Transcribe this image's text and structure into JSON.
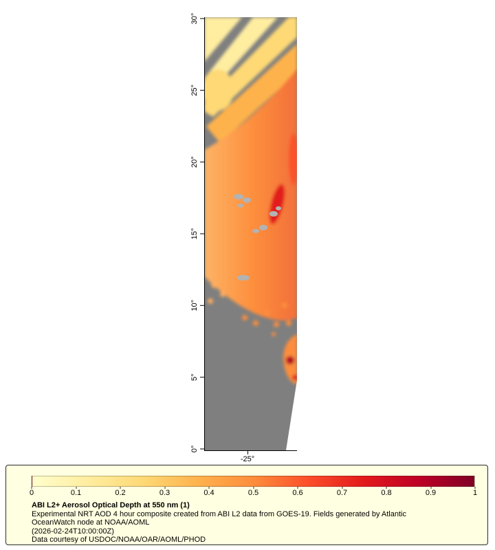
{
  "map": {
    "y_axis_ticks": [
      "30°",
      "25°",
      "20°",
      "15°",
      "10°",
      "5°",
      "0°"
    ],
    "x_axis_ticks": [
      "-25°"
    ],
    "colors": {
      "no_data_gray": "#7f7f7f",
      "island_gray": "#b3b3b3",
      "dust_light": "#ffeda0",
      "dust_mid": "#fd8d3c",
      "dust_heavy": "#e31a1c",
      "hotspot_dark_red": "#b10026"
    }
  },
  "colorbar": {
    "tick_labels": [
      "0",
      "0.1",
      "0.2",
      "0.3",
      "0.4",
      "0.5",
      "0.6",
      "0.7",
      "0.8",
      "0.9",
      "1"
    ],
    "gradient_colors": [
      "#ffffcc",
      "#ffeda0",
      "#fed976",
      "#feb24c",
      "#fd8d3c",
      "#fc4e2a",
      "#e31a1c",
      "#bd0026",
      "#800026"
    ]
  },
  "caption": {
    "title": "ABI L2+ Aerosol Optical Depth at 550 nm (1)",
    "lines": [
      "Experimental NRT AOD 4 hour composite created from ABI L2 data from GOES-19. Fields generated by Atlantic",
      "OceanWatch node at NOAA/AOML",
      "(2026-02-24T10:00:00Z)",
      "Data courtesy of USDOC/NOAA/OAR/AOML/PHOD"
    ]
  },
  "chart_data": {
    "type": "heatmap",
    "title": "ABI L2+ Aerosol Optical Depth at 550 nm (1)",
    "variable": "Aerosol Optical Depth at 550 nm",
    "colorbar": {
      "min": 0,
      "max": 1,
      "tick_step": 0.1,
      "tick_labels": [
        "0",
        "0.1",
        "0.2",
        "0.3",
        "0.4",
        "0.5",
        "0.6",
        "0.7",
        "0.8",
        "0.9",
        "1"
      ]
    },
    "y_axis": {
      "tick_labels": [
        "0°",
        "5°",
        "10°",
        "15°",
        "20°",
        "25°",
        "30°"
      ],
      "range_deg": [
        0,
        30
      ]
    },
    "x_axis": {
      "tick_labels": [
        "-25°"
      ]
    },
    "legend_position": "bottom"
  }
}
